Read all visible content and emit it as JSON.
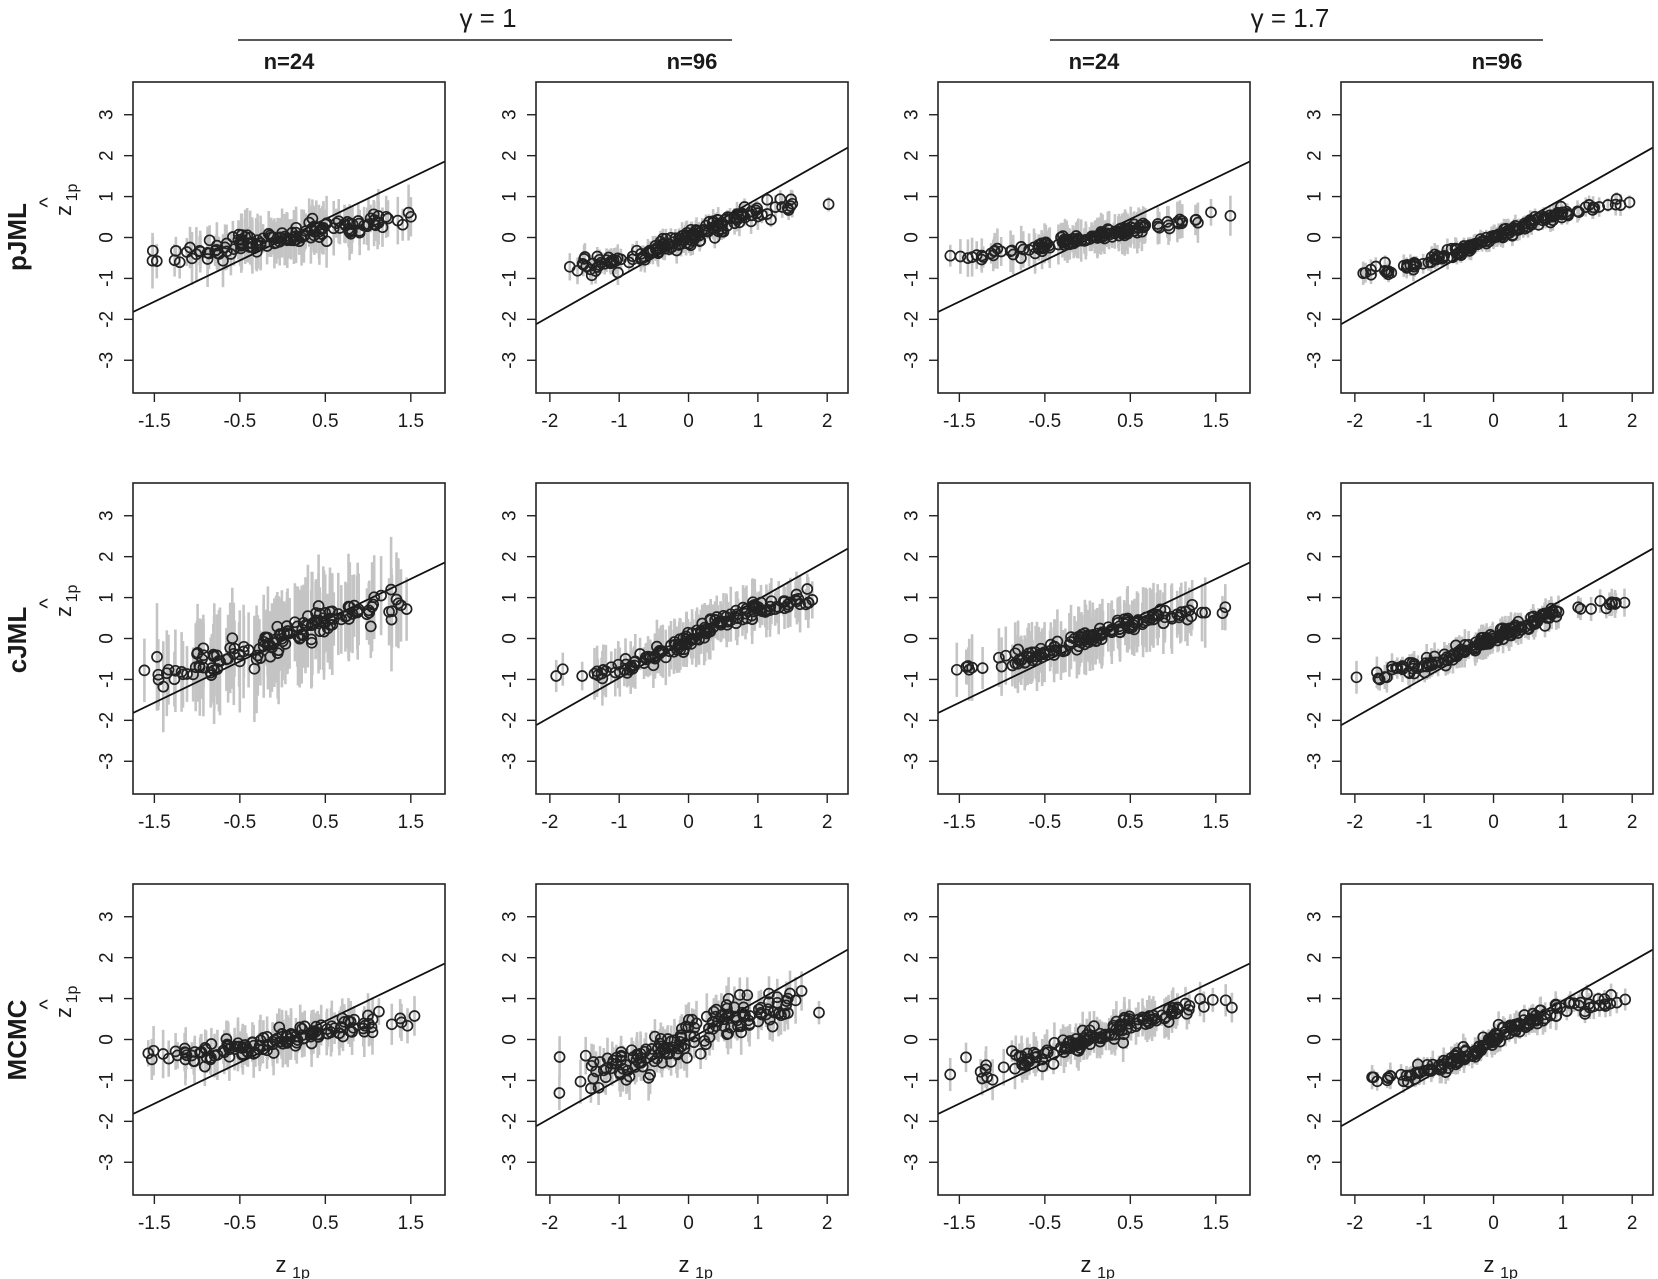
{
  "figure": {
    "gamma_labels": [
      "γ = 1",
      "γ = 1.7"
    ],
    "column_headers": [
      "n=24",
      "n=96",
      "n=24",
      "n=96"
    ],
    "row_labels": [
      "pJML",
      "cJML",
      "MCMC"
    ],
    "x_label": {
      "main": "z",
      "sub": "1p"
    },
    "y_label": {
      "hat": "^",
      "main": "z",
      "sub": "1p"
    },
    "colors": {
      "points": "#222222",
      "errorbars": "#c4c4c4",
      "line": "#111111",
      "frame": "#222222"
    }
  },
  "chart_data": [
    {
      "type": "scatter",
      "row": "pJML",
      "gamma": "γ = 1",
      "n": "n=24",
      "xlim": [
        -1.75,
        1.9
      ],
      "ylim": [
        -3.8,
        3.8
      ],
      "xticks": [
        -1.5,
        -0.5,
        0.5,
        1.5
      ],
      "xtick_labels": [
        "-1.5",
        "-0.5",
        "0.5",
        "1.5"
      ],
      "yticks": [
        -3,
        -2,
        -1,
        0,
        1,
        2,
        3
      ],
      "ytick_labels": [
        "-3",
        "-2",
        "-1",
        "0",
        "1",
        "2",
        "3"
      ],
      "x_range": [
        -1.7,
        1.75
      ],
      "slope": 0.41,
      "intercept": 0.0,
      "flatten": 1.6,
      "err_half": 0.6,
      "jitter": 0.12,
      "n_points": 140,
      "identity_line": true,
      "line_x": [
        -1.75,
        1.9
      ],
      "line_y": [
        -1.82,
        1.86
      ]
    },
    {
      "type": "scatter",
      "row": "pJML",
      "gamma": "γ = 1",
      "n": "n=96",
      "xlim": [
        -2.2,
        2.3
      ],
      "ylim": [
        -3.8,
        3.8
      ],
      "xticks": [
        -2,
        -1,
        0,
        1,
        2
      ],
      "xtick_labels": [
        "-2",
        "-1",
        "0",
        "1",
        "2"
      ],
      "yticks": [
        -3,
        -2,
        -1,
        0,
        1,
        2,
        3
      ],
      "ytick_labels": [
        "-3",
        "-2",
        "-1",
        "0",
        "1",
        "2",
        "3"
      ],
      "x_range": [
        -2.05,
        2.05
      ],
      "slope": 0.72,
      "intercept": 0.0,
      "flatten": 1.2,
      "err_half": 0.3,
      "jitter": 0.1,
      "n_points": 160,
      "identity_line": true,
      "line_x": [
        -2.2,
        2.3
      ],
      "line_y": [
        -2.12,
        2.2
      ]
    },
    {
      "type": "scatter",
      "row": "pJML",
      "gamma": "γ = 1.7",
      "n": "n=24",
      "xlim": [
        -1.75,
        1.9
      ],
      "ylim": [
        -3.8,
        3.8
      ],
      "xticks": [
        -1.5,
        -0.5,
        0.5,
        1.5
      ],
      "xtick_labels": [
        "-1.5",
        "-0.5",
        "0.5",
        "1.5"
      ],
      "yticks": [
        -3,
        -2,
        -1,
        0,
        1,
        2,
        3
      ],
      "ytick_labels": [
        "-3",
        "-2",
        "-1",
        "0",
        "1",
        "2",
        "3"
      ],
      "x_range": [
        -1.7,
        1.75
      ],
      "slope": 0.4,
      "intercept": 0.0,
      "flatten": 1.4,
      "err_half": 0.45,
      "jitter": 0.06,
      "n_points": 140,
      "identity_line": true,
      "line_x": [
        -1.75,
        1.9
      ],
      "line_y": [
        -1.82,
        1.86
      ]
    },
    {
      "type": "scatter",
      "row": "pJML",
      "gamma": "γ = 1.7",
      "n": "n=96",
      "xlim": [
        -2.2,
        2.3
      ],
      "ylim": [
        -3.8,
        3.8
      ],
      "xticks": [
        -2,
        -1,
        0,
        1,
        2
      ],
      "xtick_labels": [
        "-2",
        "-1",
        "0",
        "1",
        "2"
      ],
      "yticks": [
        -3,
        -2,
        -1,
        0,
        1,
        2,
        3
      ],
      "ytick_labels": [
        "-3",
        "-2",
        "-1",
        "0",
        "1",
        "2",
        "3"
      ],
      "x_range": [
        -2.05,
        2.05
      ],
      "slope": 0.68,
      "intercept": 0.0,
      "flatten": 1.0,
      "err_half": 0.25,
      "jitter": 0.06,
      "n_points": 160,
      "identity_line": true,
      "line_x": [
        -2.2,
        2.3
      ],
      "line_y": [
        -2.12,
        2.2
      ]
    },
    {
      "type": "scatter",
      "row": "cJML",
      "gamma": "γ = 1",
      "n": "n=24",
      "xlim": [
        -1.75,
        1.9
      ],
      "ylim": [
        -3.8,
        3.8
      ],
      "xticks": [
        -1.5,
        -0.5,
        0.5,
        1.5
      ],
      "xtick_labels": [
        "-1.5",
        "-0.5",
        "0.5",
        "1.5"
      ],
      "yticks": [
        -3,
        -2,
        -1,
        0,
        1,
        2,
        3
      ],
      "ytick_labels": [
        "-3",
        "-2",
        "-1",
        "0",
        "1",
        "2",
        "3"
      ],
      "x_range": [
        -1.7,
        1.75
      ],
      "slope": 0.93,
      "intercept": 0.0,
      "flatten": 1.0,
      "err_half": 1.15,
      "jitter": 0.2,
      "n_points": 140,
      "identity_line": true,
      "line_x": [
        -1.75,
        1.9
      ],
      "line_y": [
        -1.82,
        1.86
      ]
    },
    {
      "type": "scatter",
      "row": "cJML",
      "gamma": "γ = 1",
      "n": "n=96",
      "xlim": [
        -2.2,
        2.3
      ],
      "ylim": [
        -3.8,
        3.8
      ],
      "xticks": [
        -2,
        -1,
        0,
        1,
        2
      ],
      "xtick_labels": [
        "-2",
        "-1",
        "0",
        "1",
        "2"
      ],
      "yticks": [
        -3,
        -2,
        -1,
        0,
        1,
        2,
        3
      ],
      "ytick_labels": [
        "-3",
        "-2",
        "-1",
        "0",
        "1",
        "2",
        "3"
      ],
      "x_range": [
        -2.05,
        2.05
      ],
      "slope": 0.92,
      "intercept": 0.0,
      "flatten": 1.0,
      "err_half": 0.6,
      "jitter": 0.1,
      "n_points": 160,
      "identity_line": true,
      "line_x": [
        -2.2,
        2.3
      ],
      "line_y": [
        -2.12,
        2.2
      ]
    },
    {
      "type": "scatter",
      "row": "cJML",
      "gamma": "γ = 1.7",
      "n": "n=24",
      "xlim": [
        -1.75,
        1.9
      ],
      "ylim": [
        -3.8,
        3.8
      ],
      "xticks": [
        -1.5,
        -0.5,
        0.5,
        1.5
      ],
      "xtick_labels": [
        "-1.5",
        "-0.5",
        "0.5",
        "1.5"
      ],
      "yticks": [
        -3,
        -2,
        -1,
        0,
        1,
        2,
        3
      ],
      "ytick_labels": [
        "-3",
        "-2",
        "-1",
        "0",
        "1",
        "2",
        "3"
      ],
      "x_range": [
        -1.7,
        1.75
      ],
      "slope": 0.75,
      "intercept": 0.0,
      "flatten": 1.3,
      "err_half": 0.75,
      "jitter": 0.1,
      "n_points": 140,
      "identity_line": true,
      "line_x": [
        -1.75,
        1.9
      ],
      "line_y": [
        -1.82,
        1.86
      ]
    },
    {
      "type": "scatter",
      "row": "cJML",
      "gamma": "γ = 1.7",
      "n": "n=96",
      "xlim": [
        -2.2,
        2.3
      ],
      "ylim": [
        -3.8,
        3.8
      ],
      "xticks": [
        -2,
        -1,
        0,
        1,
        2
      ],
      "xtick_labels": [
        "-2",
        "-1",
        "0",
        "1",
        "2"
      ],
      "yticks": [
        -3,
        -2,
        -1,
        0,
        1,
        2,
        3
      ],
      "ytick_labels": [
        "-3",
        "-2",
        "-1",
        "0",
        "1",
        "2",
        "3"
      ],
      "x_range": [
        -2.05,
        2.05
      ],
      "slope": 0.75,
      "intercept": 0.0,
      "flatten": 1.0,
      "err_half": 0.35,
      "jitter": 0.08,
      "n_points": 160,
      "identity_line": true,
      "line_x": [
        -2.2,
        2.3
      ],
      "line_y": [
        -2.12,
        2.2
      ]
    },
    {
      "type": "scatter",
      "row": "MCMC",
      "gamma": "γ = 1",
      "n": "n=24",
      "xlim": [
        -1.75,
        1.9
      ],
      "ylim": [
        -3.8,
        3.8
      ],
      "xticks": [
        -1.5,
        -0.5,
        0.5,
        1.5
      ],
      "xtick_labels": [
        "-1.5",
        "-0.5",
        "0.5",
        "1.5"
      ],
      "yticks": [
        -3,
        -2,
        -1,
        0,
        1,
        2,
        3
      ],
      "ytick_labels": [
        "-3",
        "-2",
        "-1",
        "0",
        "1",
        "2",
        "3"
      ],
      "x_range": [
        -1.7,
        1.75
      ],
      "slope": 0.4,
      "intercept": 0.0,
      "flatten": 1.6,
      "err_half": 0.55,
      "jitter": 0.13,
      "n_points": 140,
      "identity_line": true,
      "line_x": [
        -1.75,
        1.9
      ],
      "line_y": [
        -1.82,
        1.86
      ]
    },
    {
      "type": "scatter",
      "row": "MCMC",
      "gamma": "γ = 1",
      "n": "n=96",
      "xlim": [
        -2.2,
        2.3
      ],
      "ylim": [
        -3.8,
        3.8
      ],
      "xticks": [
        -2,
        -1,
        0,
        1,
        2
      ],
      "xtick_labels": [
        "-2",
        "-1",
        "0",
        "1",
        "2"
      ],
      "yticks": [
        -3,
        -2,
        -1,
        0,
        1,
        2,
        3
      ],
      "ytick_labels": [
        "-3",
        "-2",
        "-1",
        "0",
        "1",
        "2",
        "3"
      ],
      "x_range": [
        -2.05,
        2.05
      ],
      "slope": 0.8,
      "intercept": 0.0,
      "flatten": 1.1,
      "err_half": 0.5,
      "jitter": 0.22,
      "n_points": 160,
      "identity_line": true,
      "line_x": [
        -2.2,
        2.3
      ],
      "line_y": [
        -2.12,
        2.2
      ]
    },
    {
      "type": "scatter",
      "row": "MCMC",
      "gamma": "γ = 1.7",
      "n": "n=24",
      "xlim": [
        -1.75,
        1.9
      ],
      "ylim": [
        -3.8,
        3.8
      ],
      "xticks": [
        -1.5,
        -0.5,
        0.5,
        1.5
      ],
      "xtick_labels": [
        "-1.5",
        "-0.5",
        "0.5",
        "1.5"
      ],
      "yticks": [
        -3,
        -2,
        -1,
        0,
        1,
        2,
        3
      ],
      "ytick_labels": [
        "-3",
        "-2",
        "-1",
        "0",
        "1",
        "2",
        "3"
      ],
      "x_range": [
        -1.7,
        1.75
      ],
      "slope": 0.78,
      "intercept": 0.0,
      "flatten": 1.0,
      "err_half": 0.45,
      "jitter": 0.12,
      "n_points": 140,
      "identity_line": true,
      "line_x": [
        -1.75,
        1.9
      ],
      "line_y": [
        -1.82,
        1.86
      ]
    },
    {
      "type": "scatter",
      "row": "MCMC",
      "gamma": "γ = 1.7",
      "n": "n=96",
      "xlim": [
        -2.2,
        2.3
      ],
      "ylim": [
        -3.8,
        3.8
      ],
      "xticks": [
        -2,
        -1,
        0,
        1,
        2
      ],
      "xtick_labels": [
        "-2",
        "-1",
        "0",
        "1",
        "2"
      ],
      "yticks": [
        -3,
        -2,
        -1,
        0,
        1,
        2,
        3
      ],
      "ytick_labels": [
        "-3",
        "-2",
        "-1",
        "0",
        "1",
        "2",
        "3"
      ],
      "x_range": [
        -2.05,
        2.05
      ],
      "slope": 0.98,
      "intercept": 0.0,
      "flatten": 1.0,
      "err_half": 0.3,
      "jitter": 0.1,
      "n_points": 160,
      "identity_line": true,
      "line_x": [
        -2.2,
        2.3
      ],
      "line_y": [
        -2.12,
        2.2
      ]
    }
  ]
}
